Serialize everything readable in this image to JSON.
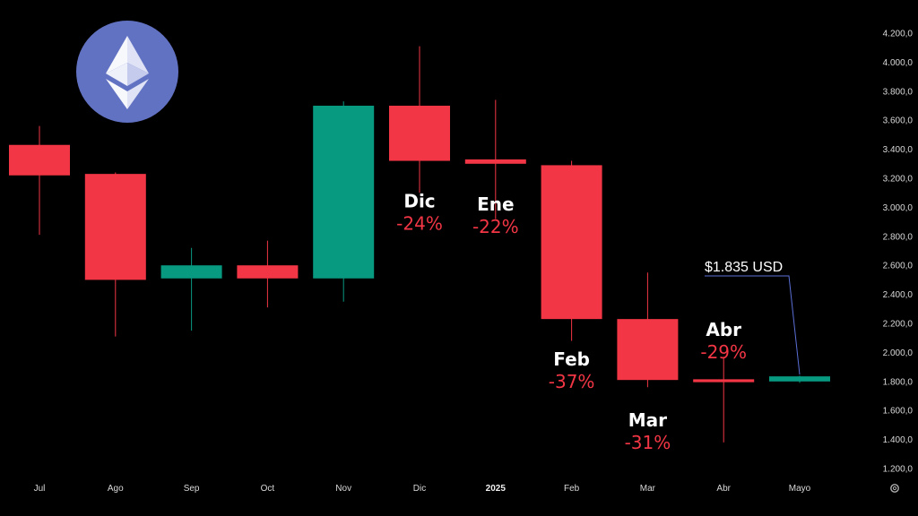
{
  "colors": {
    "background": "#000000",
    "up": "#089981",
    "down": "#f23645",
    "axis_text": "#d9d9d9",
    "callout_line": "#5b6fd6",
    "logo_circle": "#6272c3",
    "percent_text": "#f23645"
  },
  "logo": {
    "icon": "ethereum-icon"
  },
  "chart_data": {
    "type": "candlestick",
    "categories": [
      "Jul",
      "Ago",
      "Sep",
      "Oct",
      "Nov",
      "Dic",
      "2025",
      "Feb",
      "Mar",
      "Abr",
      "Mayo"
    ],
    "candles": [
      {
        "open": 3430,
        "high": 3560,
        "low": 2810,
        "close": 3220
      },
      {
        "open": 3230,
        "high": 3240,
        "low": 2110,
        "close": 2500
      },
      {
        "open": 2510,
        "high": 2720,
        "low": 2150,
        "close": 2600
      },
      {
        "open": 2600,
        "high": 2770,
        "low": 2310,
        "close": 2510
      },
      {
        "open": 2510,
        "high": 3730,
        "low": 2350,
        "close": 3700
      },
      {
        "open": 3700,
        "high": 4110,
        "low": 3100,
        "close": 3320
      },
      {
        "open": 3330,
        "high": 3740,
        "low": 2920,
        "close": 3300
      },
      {
        "open": 3290,
        "high": 3320,
        "low": 2080,
        "close": 2230
      },
      {
        "open": 2230,
        "high": 2550,
        "low": 1760,
        "close": 1810
      },
      {
        "open": 1815,
        "high": 1960,
        "low": 1380,
        "close": 1795
      },
      {
        "open": 1800,
        "high": 1840,
        "low": 1790,
        "close": 1835
      }
    ],
    "y_ticks": [
      "1.200,0",
      "1.400,0",
      "1.600,0",
      "1.800,0",
      "2.000,0",
      "2.200,0",
      "2.400,0",
      "2.600,0",
      "2.800,0",
      "3.000,0",
      "3.200,0",
      "3.400,0",
      "3.600,0",
      "3.800,0",
      "4.000,0",
      "4.200,0"
    ],
    "y_tick_values": [
      1200,
      1400,
      1600,
      1800,
      2000,
      2200,
      2400,
      2600,
      2800,
      3000,
      3200,
      3400,
      3600,
      3800,
      4000,
      4200
    ],
    "ylim": [
      1170,
      4270
    ],
    "grid": false,
    "annotations": [
      {
        "candle": 5,
        "month": "Dic",
        "percent": "-24%"
      },
      {
        "candle": 6,
        "month": "Ene",
        "percent": "-22%"
      },
      {
        "candle": 7,
        "month": "Feb",
        "percent": "-37%"
      },
      {
        "candle": 8,
        "month": "Mar",
        "percent": "-31%"
      },
      {
        "candle": 9,
        "month": "Abr",
        "percent": "-29%"
      }
    ],
    "price_callout": {
      "text": "$1.835 USD",
      "value": 1835
    }
  },
  "settings_icon": "gear-icon"
}
